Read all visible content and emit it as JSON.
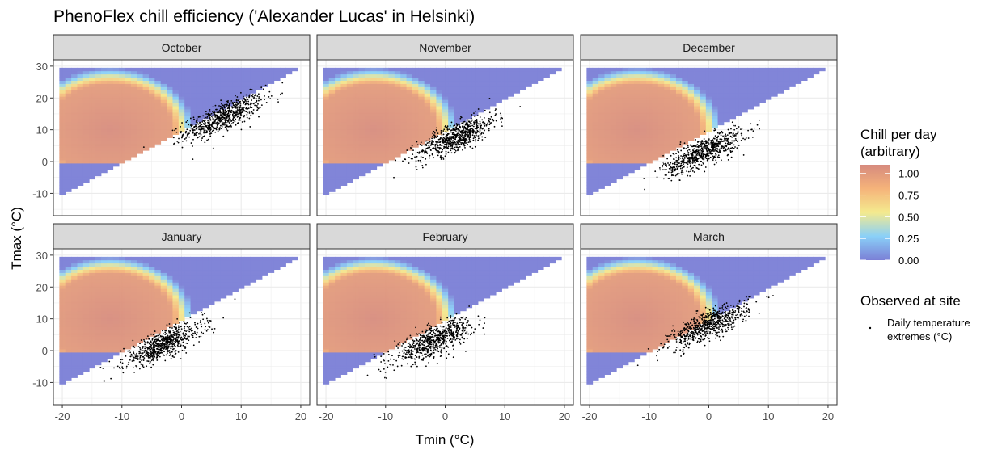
{
  "chart_data": {
    "type": "heatmap",
    "title": "PhenoFlex chill efficiency ('Alexander Lucas' in Helsinki)",
    "xlabel": "Tmin (°C)",
    "ylabel": "Tmax (°C)",
    "xlim": [
      -21.5,
      21.5
    ],
    "ylim": [
      -17,
      32
    ],
    "xticks": [
      -20,
      -10,
      0,
      10,
      20
    ],
    "yticks": [
      -10,
      0,
      10,
      20,
      30
    ],
    "xtick_labels": [
      "-20",
      "-10",
      "0",
      "10",
      "20"
    ],
    "ytick_labels": [
      "-10",
      "0",
      "10",
      "20",
      "30"
    ],
    "grid": true,
    "facets": [
      "October",
      "November",
      "December",
      "January",
      "February",
      "March"
    ],
    "heatmap_domain": {
      "tmin_range": [
        -20,
        19
      ],
      "tmax_range": [
        -14,
        29
      ],
      "constraint": "Tmax >= Tmin",
      "value_below_tmax_0": 0
    },
    "observed_centers": [
      {
        "month": "October",
        "tmin": 7,
        "tmax": 14
      },
      {
        "month": "November",
        "tmin": 2,
        "tmax": 8
      },
      {
        "month": "December",
        "tmin": -1,
        "tmax": 3
      },
      {
        "month": "January",
        "tmin": -3,
        "tmax": 2
      },
      {
        "month": "February",
        "tmin": -2,
        "tmax": 3
      },
      {
        "month": "March",
        "tmin": 0,
        "tmax": 8
      }
    ],
    "legend": {
      "fill_title_line1": "Chill per day",
      "fill_title_line2": "(arbitrary)",
      "fill_breaks": [
        "1.00",
        "0.75",
        "0.50",
        "0.25",
        "0.00"
      ],
      "fill_range": [
        0,
        1.1
      ],
      "fill_colors": [
        "#7b7fd6",
        "#8ad0f8",
        "#f4ea8e",
        "#f5b37a",
        "#d68a7e"
      ],
      "points_title": "Observed at site",
      "points_label_line1": "Daily temperature",
      "points_label_line2": "extremes (°C)",
      "placement": "right"
    }
  }
}
